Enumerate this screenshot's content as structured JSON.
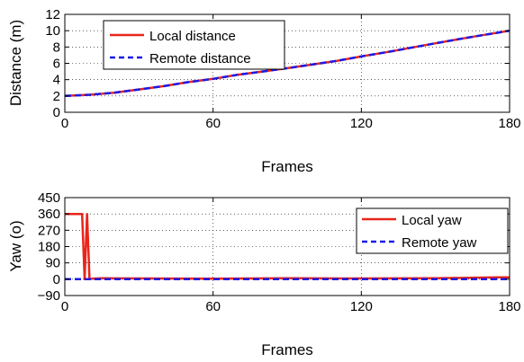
{
  "chart_data": [
    {
      "type": "line",
      "xlabel": "Frames",
      "ylabel": "Distance (m)",
      "xlim": [
        0,
        180
      ],
      "ylim": [
        0,
        12
      ],
      "xticks": [
        0,
        60,
        120,
        180
      ],
      "yticks": [
        0,
        2,
        4,
        6,
        8,
        10,
        12
      ],
      "grid": true,
      "legend_position": "top-left",
      "series": [
        {
          "name": "Local distance",
          "color": "#e8251a",
          "style": "solid",
          "x": [
            0,
            10,
            20,
            30,
            40,
            50,
            60,
            70,
            80,
            90,
            100,
            110,
            120,
            130,
            140,
            150,
            160,
            170,
            180
          ],
          "y": [
            2.0,
            2.15,
            2.4,
            2.8,
            3.2,
            3.7,
            4.1,
            4.6,
            5.0,
            5.4,
            5.85,
            6.3,
            6.85,
            7.35,
            7.9,
            8.45,
            9.0,
            9.5,
            10.0
          ]
        },
        {
          "name": "Remote distance",
          "color": "#1a1ae8",
          "style": "dashed",
          "x": [
            0,
            10,
            20,
            30,
            40,
            50,
            60,
            70,
            80,
            90,
            100,
            110,
            120,
            130,
            140,
            150,
            160,
            170,
            180
          ],
          "y": [
            2.0,
            2.15,
            2.4,
            2.8,
            3.2,
            3.7,
            4.1,
            4.6,
            5.0,
            5.4,
            5.85,
            6.3,
            6.85,
            7.35,
            7.9,
            8.45,
            9.0,
            9.5,
            10.0
          ]
        }
      ]
    },
    {
      "type": "line",
      "xlabel": "Frames",
      "ylabel": "Yaw (o)",
      "xlim": [
        0,
        180
      ],
      "ylim": [
        -90,
        450
      ],
      "xticks": [
        0,
        60,
        120,
        180
      ],
      "yticks": [
        -90,
        0,
        90,
        180,
        270,
        360,
        450
      ],
      "grid": true,
      "legend_position": "top-right",
      "series": [
        {
          "name": "Local yaw",
          "color": "#e8251a",
          "style": "solid",
          "x": [
            0,
            7,
            8,
            9,
            10,
            11,
            15,
            60,
            90,
            120,
            150,
            175,
            180
          ],
          "y": [
            360,
            360,
            0,
            360,
            0,
            3,
            5,
            3,
            5,
            4,
            5,
            10,
            10
          ]
        },
        {
          "name": "Remote yaw",
          "color": "#1a1ae8",
          "style": "dashed",
          "x": [
            0,
            60,
            120,
            180
          ],
          "y": [
            0,
            0,
            0,
            0
          ]
        }
      ]
    }
  ]
}
